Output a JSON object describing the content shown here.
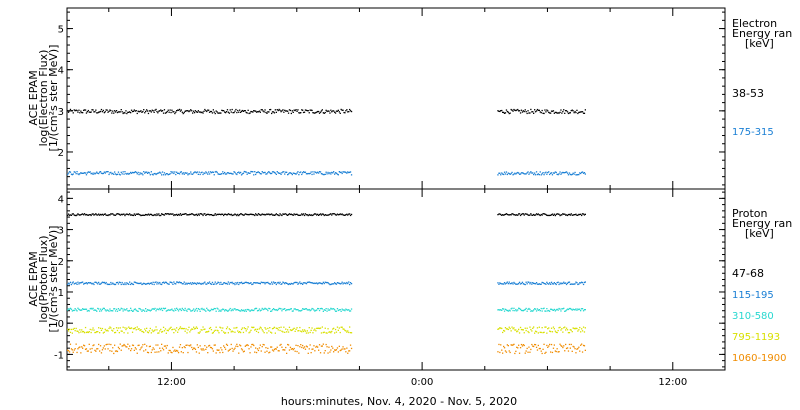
{
  "chart_data": [
    {
      "type": "scatter",
      "panel": "electron",
      "ylabel": [
        "ACE EPAM",
        "log(Electron Flux)",
        "[1/(cm²s ster MeV)]"
      ],
      "ylim": [
        1.1,
        5.5
      ],
      "yticks": [
        2,
        3,
        4,
        5
      ],
      "legend_title": [
        "Electron",
        "Energy ran",
        "[keV]"
      ],
      "series": [
        {
          "name": "38-53",
          "color": "#000000",
          "level": 3.0,
          "noise": 0.05
        },
        {
          "name": "175-315",
          "color": "#1a7fd4",
          "level": 1.5,
          "noise": 0.04
        }
      ]
    },
    {
      "type": "scatter",
      "panel": "proton",
      "ylabel": [
        "ACE EPAM",
        "log(Proton Flux)",
        "[1/(cm²s ster MeV)]"
      ],
      "ylim": [
        -1.5,
        4.3
      ],
      "yticks": [
        -1,
        0,
        1,
        2,
        3,
        4
      ],
      "legend_title": [
        "Proton",
        "Energy ran",
        "[keV]"
      ],
      "series": [
        {
          "name": "47-68",
          "color": "#000000",
          "level": 3.5,
          "noise": 0.03
        },
        {
          "name": "115-195",
          "color": "#1a7fd4",
          "level": 1.3,
          "noise": 0.04
        },
        {
          "name": "310-580",
          "color": "#28d8d0",
          "level": 0.45,
          "noise": 0.05
        },
        {
          "name": "795-1193",
          "color": "#d8e000",
          "level": -0.2,
          "noise": 0.1
        },
        {
          "name": "1060-1900",
          "color": "#f08c00",
          "level": -0.8,
          "noise": 0.15
        }
      ]
    }
  ],
  "time_axis": {
    "xlim_hours": [
      7,
      38.5
    ],
    "tick_hours": [
      12,
      24,
      36
    ],
    "tick_labels": [
      "12:00",
      "0:00",
      "12:00"
    ],
    "data_segments_hours": [
      [
        7,
        20.6
      ],
      [
        27.6,
        31.8
      ]
    ],
    "xlabel": "hours:minutes, Nov.  4, 2020 - Nov.  5, 2020"
  }
}
